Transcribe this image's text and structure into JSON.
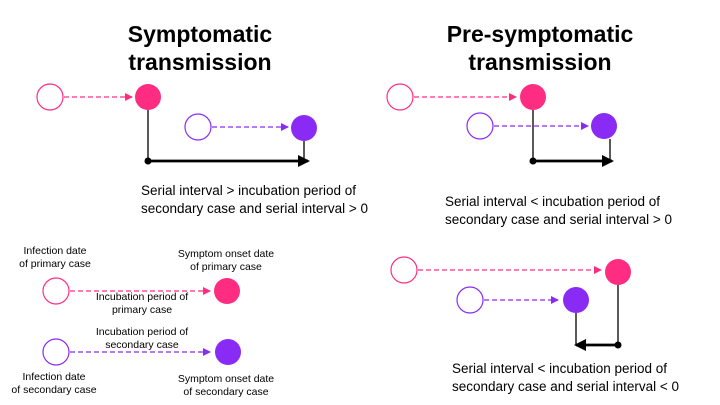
{
  "colors": {
    "primary_case": "#ff2d82",
    "secondary_case": "#8a2bf5",
    "arrow": "#000000"
  },
  "panels": {
    "symptomatic": {
      "title": "Symptomatic\ntransmission",
      "caption": "Serial interval > incubation period of\nsecondary case and serial interval > 0"
    },
    "presymptomatic": {
      "title": "Pre-symptomatic\ntransmission",
      "caption_positive": "Serial interval < incubation period of\nsecondary case and serial interval > 0",
      "caption_negative": "Serial interval < incubation period of\nsecondary case and serial interval < 0"
    }
  },
  "legend": {
    "infection_primary": "Infection date\nof primary case",
    "onset_primary": "Symptom onset date\nof primary case",
    "incubation_primary": "Incubation period of\nprimary case",
    "incubation_secondary": "Incubation period of\nsecondary case",
    "infection_secondary": "Infection date\nof secondary case",
    "onset_secondary": "Symptom onset date\nof secondary case"
  }
}
